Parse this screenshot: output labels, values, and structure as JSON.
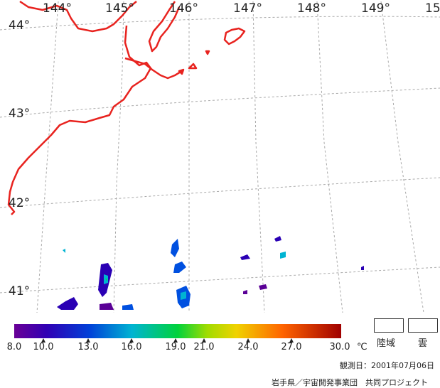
{
  "map": {
    "lon_labels": [
      "144°",
      "145°",
      "146°",
      "147°",
      "148°",
      "149°",
      "15"
    ],
    "lat_labels": [
      "44°",
      "43°",
      "42°",
      "41°"
    ],
    "coast_color": "#e8231f",
    "grid_color": "#a9a9a9"
  },
  "legend": {
    "ticks": [
      "8.0",
      "10.0",
      "13.0",
      "16.0",
      "19.0",
      "21.0",
      "24.0",
      "27.0",
      "30.0"
    ],
    "unit": "℃",
    "colors": [
      "#5a0096",
      "#2a00b4",
      "#0050e0",
      "#00b4d2",
      "#00d25a",
      "#82d200",
      "#e6d200",
      "#ff7800",
      "#d20000",
      "#960000"
    ],
    "land_label": "陸域",
    "cloud_label": "雲"
  },
  "footer": {
    "observation_date": "観測日：2001年07月06日",
    "credit": "岩手県／宇宙開発事業団　共同プロジェクト"
  }
}
